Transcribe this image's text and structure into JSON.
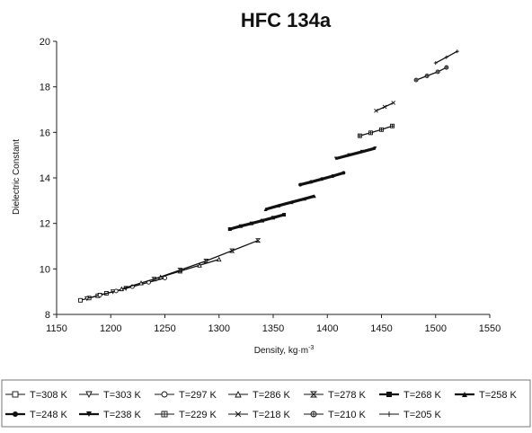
{
  "chart_data": {
    "type": "line",
    "title": "HFC 134a",
    "xlabel": "Density, kg·m",
    "xlabel_sup": "-3",
    "ylabel": "Dielectric Constant",
    "xlim": [
      1150,
      1550
    ],
    "ylim": [
      8,
      20
    ],
    "x_ticks": [
      1150,
      1200,
      1250,
      1300,
      1350,
      1400,
      1450,
      1500,
      1550
    ],
    "y_ticks": [
      8,
      10,
      12,
      14,
      16,
      18,
      20
    ],
    "grid": false,
    "legend_position": "bottom",
    "series": [
      {
        "name": "T=308 K",
        "marker": "square-open",
        "x": [
          1172,
          1180,
          1188,
          1196
        ],
        "y": [
          8.62,
          8.72,
          8.82,
          8.93
        ]
      },
      {
        "name": "T=303 K",
        "marker": "triangle-down-open",
        "x": [
          1178,
          1190,
          1202,
          1214
        ],
        "y": [
          8.7,
          8.85,
          9.0,
          9.15
        ]
      },
      {
        "name": "T=297 K",
        "marker": "circle-open",
        "x": [
          1190,
          1205,
          1220,
          1235,
          1250
        ],
        "y": [
          8.85,
          9.03,
          9.22,
          9.41,
          9.6
        ]
      },
      {
        "name": "T=286 K",
        "marker": "triangle-up-open",
        "x": [
          1210,
          1228,
          1246,
          1264,
          1282,
          1300
        ],
        "y": [
          9.12,
          9.38,
          9.64,
          9.9,
          10.16,
          10.42
        ]
      },
      {
        "name": "T=278 K",
        "marker": "hourglass",
        "x": [
          1240,
          1264,
          1288,
          1312,
          1336
        ],
        "y": [
          9.55,
          9.95,
          10.35,
          10.8,
          11.25
        ]
      },
      {
        "name": "T=268 K",
        "marker": "square-filled",
        "x": [
          1310,
          1320,
          1330,
          1340,
          1350,
          1360
        ],
        "y": [
          11.75,
          11.88,
          12.0,
          12.12,
          12.25,
          12.38
        ]
      },
      {
        "name": "T=258 K",
        "marker": "triangle-up-filled",
        "x": [
          1343,
          1355,
          1367,
          1379,
          1388
        ],
        "y": [
          12.62,
          12.78,
          12.93,
          13.08,
          13.2
        ]
      },
      {
        "name": "T=248 K",
        "marker": "circle-filled",
        "x": [
          1375,
          1385,
          1395,
          1405,
          1415
        ],
        "y": [
          13.7,
          13.82,
          13.95,
          14.08,
          14.22
        ]
      },
      {
        "name": "T=238 K",
        "marker": "triangle-down-filled",
        "x": [
          1408,
          1420,
          1432,
          1444
        ],
        "y": [
          14.85,
          15.0,
          15.15,
          15.3
        ]
      },
      {
        "name": "T=229 K",
        "marker": "square-cross",
        "x": [
          1430,
          1440,
          1450,
          1460
        ],
        "y": [
          15.85,
          15.98,
          16.12,
          16.28
        ]
      },
      {
        "name": "T=218 K",
        "marker": "x-cross",
        "x": [
          1445,
          1453,
          1461
        ],
        "y": [
          16.95,
          17.12,
          17.3
        ]
      },
      {
        "name": "T=210 K",
        "marker": "circle-cross",
        "x": [
          1482,
          1492,
          1502,
          1510
        ],
        "y": [
          18.3,
          18.48,
          18.66,
          18.85
        ]
      },
      {
        "name": "T=205 K",
        "marker": "plus",
        "x": [
          1500,
          1510,
          1520
        ],
        "y": [
          19.05,
          19.3,
          19.56
        ]
      }
    ]
  }
}
